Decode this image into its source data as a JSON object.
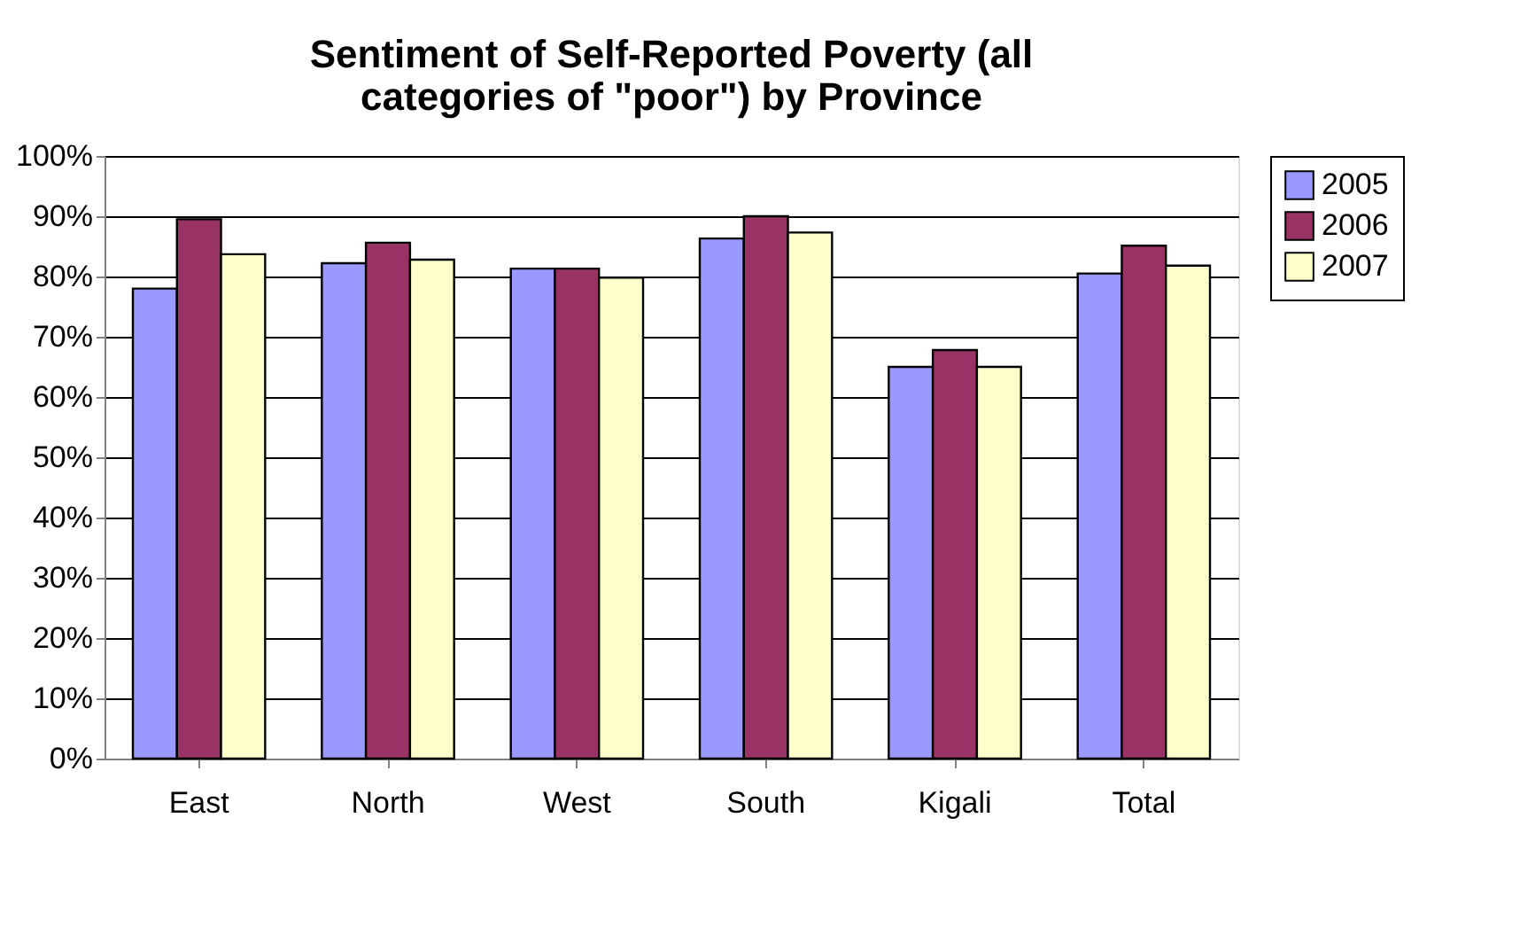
{
  "chart_data": {
    "type": "bar",
    "title": [
      "Sentiment of Self-Reported Poverty (all",
      "categories of \"poor\") by Province"
    ],
    "categories": [
      "East",
      "North",
      "West",
      "South",
      "Kigali",
      "Total"
    ],
    "series": [
      {
        "name": "2005",
        "color": "#9999ff",
        "values": [
          78,
          82.2,
          81.3,
          86.3,
          65,
          80.5
        ]
      },
      {
        "name": "2006",
        "color": "#993366",
        "values": [
          89.5,
          85.6,
          81.3,
          90,
          67.8,
          85.1
        ]
      },
      {
        "name": "2007",
        "color": "#ffffcc",
        "values": [
          83.7,
          82.8,
          79.8,
          87.3,
          65,
          81.8
        ]
      }
    ],
    "ylim": [
      0,
      100
    ],
    "yticks": [
      {
        "value": 0,
        "label": "0%"
      },
      {
        "value": 10,
        "label": "10%"
      },
      {
        "value": 20,
        "label": "20%"
      },
      {
        "value": 30,
        "label": "30%"
      },
      {
        "value": 40,
        "label": "40%"
      },
      {
        "value": 50,
        "label": "50%"
      },
      {
        "value": 60,
        "label": "60%"
      },
      {
        "value": 70,
        "label": "70%"
      },
      {
        "value": 80,
        "label": "80%"
      },
      {
        "value": 90,
        "label": "90%"
      },
      {
        "value": 100,
        "label": "100%"
      }
    ],
    "grid": "y",
    "legend": "right"
  }
}
